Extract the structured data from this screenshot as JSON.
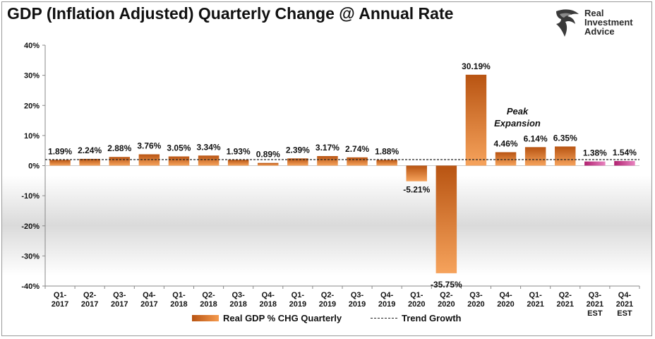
{
  "title": "GDP (Inflation Adjusted) Quarterly Change @ Annual Rate",
  "logo": {
    "line1": "Real",
    "line2": "Investment",
    "line3": "Advice",
    "icon": "eagle-head-icon"
  },
  "legend": {
    "bar_label": "Real GDP % CHG Quarterly",
    "line_label": "Trend Growth"
  },
  "annotation": {
    "line1": "Peak",
    "line2": "Expansion"
  },
  "colors": {
    "bar_dark": "#b85412",
    "bar_light": "#f59a4e",
    "est_dark": "#b0206f",
    "est_light": "#e884c0",
    "trend": "#222222"
  },
  "chart_data": {
    "type": "bar",
    "title": "GDP (Inflation Adjusted) Quarterly Change @ Annual Rate",
    "xlabel": "",
    "ylabel": "",
    "ylim": [
      -40,
      40
    ],
    "yticks": [
      "-40%",
      "-30%",
      "-20%",
      "-10%",
      "0%",
      "10%",
      "20%",
      "30%",
      "40%"
    ],
    "ytick_values": [
      -40,
      -30,
      -20,
      -10,
      0,
      10,
      20,
      30,
      40
    ],
    "categories": [
      [
        "Q1-",
        "2017"
      ],
      [
        "Q2-",
        "2017"
      ],
      [
        "Q3-",
        "2017"
      ],
      [
        "Q4-",
        "2017"
      ],
      [
        "Q1-",
        "2018"
      ],
      [
        "Q2-",
        "2018"
      ],
      [
        "Q3-",
        "2018"
      ],
      [
        "Q4-",
        "2018"
      ],
      [
        "Q1-",
        "2019"
      ],
      [
        "Q2-",
        "2019"
      ],
      [
        "Q3-",
        "2019"
      ],
      [
        "Q4-",
        "2019"
      ],
      [
        "Q1-",
        "2020"
      ],
      [
        "Q2-",
        "2020"
      ],
      [
        "Q3-",
        "2020"
      ],
      [
        "Q4-",
        "2020"
      ],
      [
        "Q1-",
        "2021"
      ],
      [
        "Q2-",
        "2021"
      ],
      [
        "Q3-",
        "2021",
        "EST"
      ],
      [
        "Q4-",
        "2021",
        "EST"
      ]
    ],
    "series": [
      {
        "name": "Real GDP % CHG Quarterly",
        "values": [
          1.89,
          2.24,
          2.88,
          3.76,
          3.05,
          3.34,
          1.93,
          0.89,
          2.39,
          3.17,
          2.74,
          1.88,
          -5.21,
          -35.75,
          30.19,
          4.46,
          6.14,
          6.35,
          1.38,
          1.54
        ],
        "labels": [
          "1.89%",
          "2.24%",
          "2.88%",
          "3.76%",
          "3.05%",
          "3.34%",
          "1.93%",
          "0.89%",
          "2.39%",
          "3.17%",
          "2.74%",
          "1.88%",
          "-5.21%",
          "-35.75%",
          "30.19%",
          "4.46%",
          "6.14%",
          "6.35%",
          "1.38%",
          "1.54%"
        ],
        "estimate": [
          false,
          false,
          false,
          false,
          false,
          false,
          false,
          false,
          false,
          false,
          false,
          false,
          false,
          false,
          false,
          false,
          false,
          false,
          true,
          true
        ]
      },
      {
        "name": "Trend Growth",
        "value": 2.0
      }
    ],
    "grid": false,
    "legend_position": "bottom"
  }
}
